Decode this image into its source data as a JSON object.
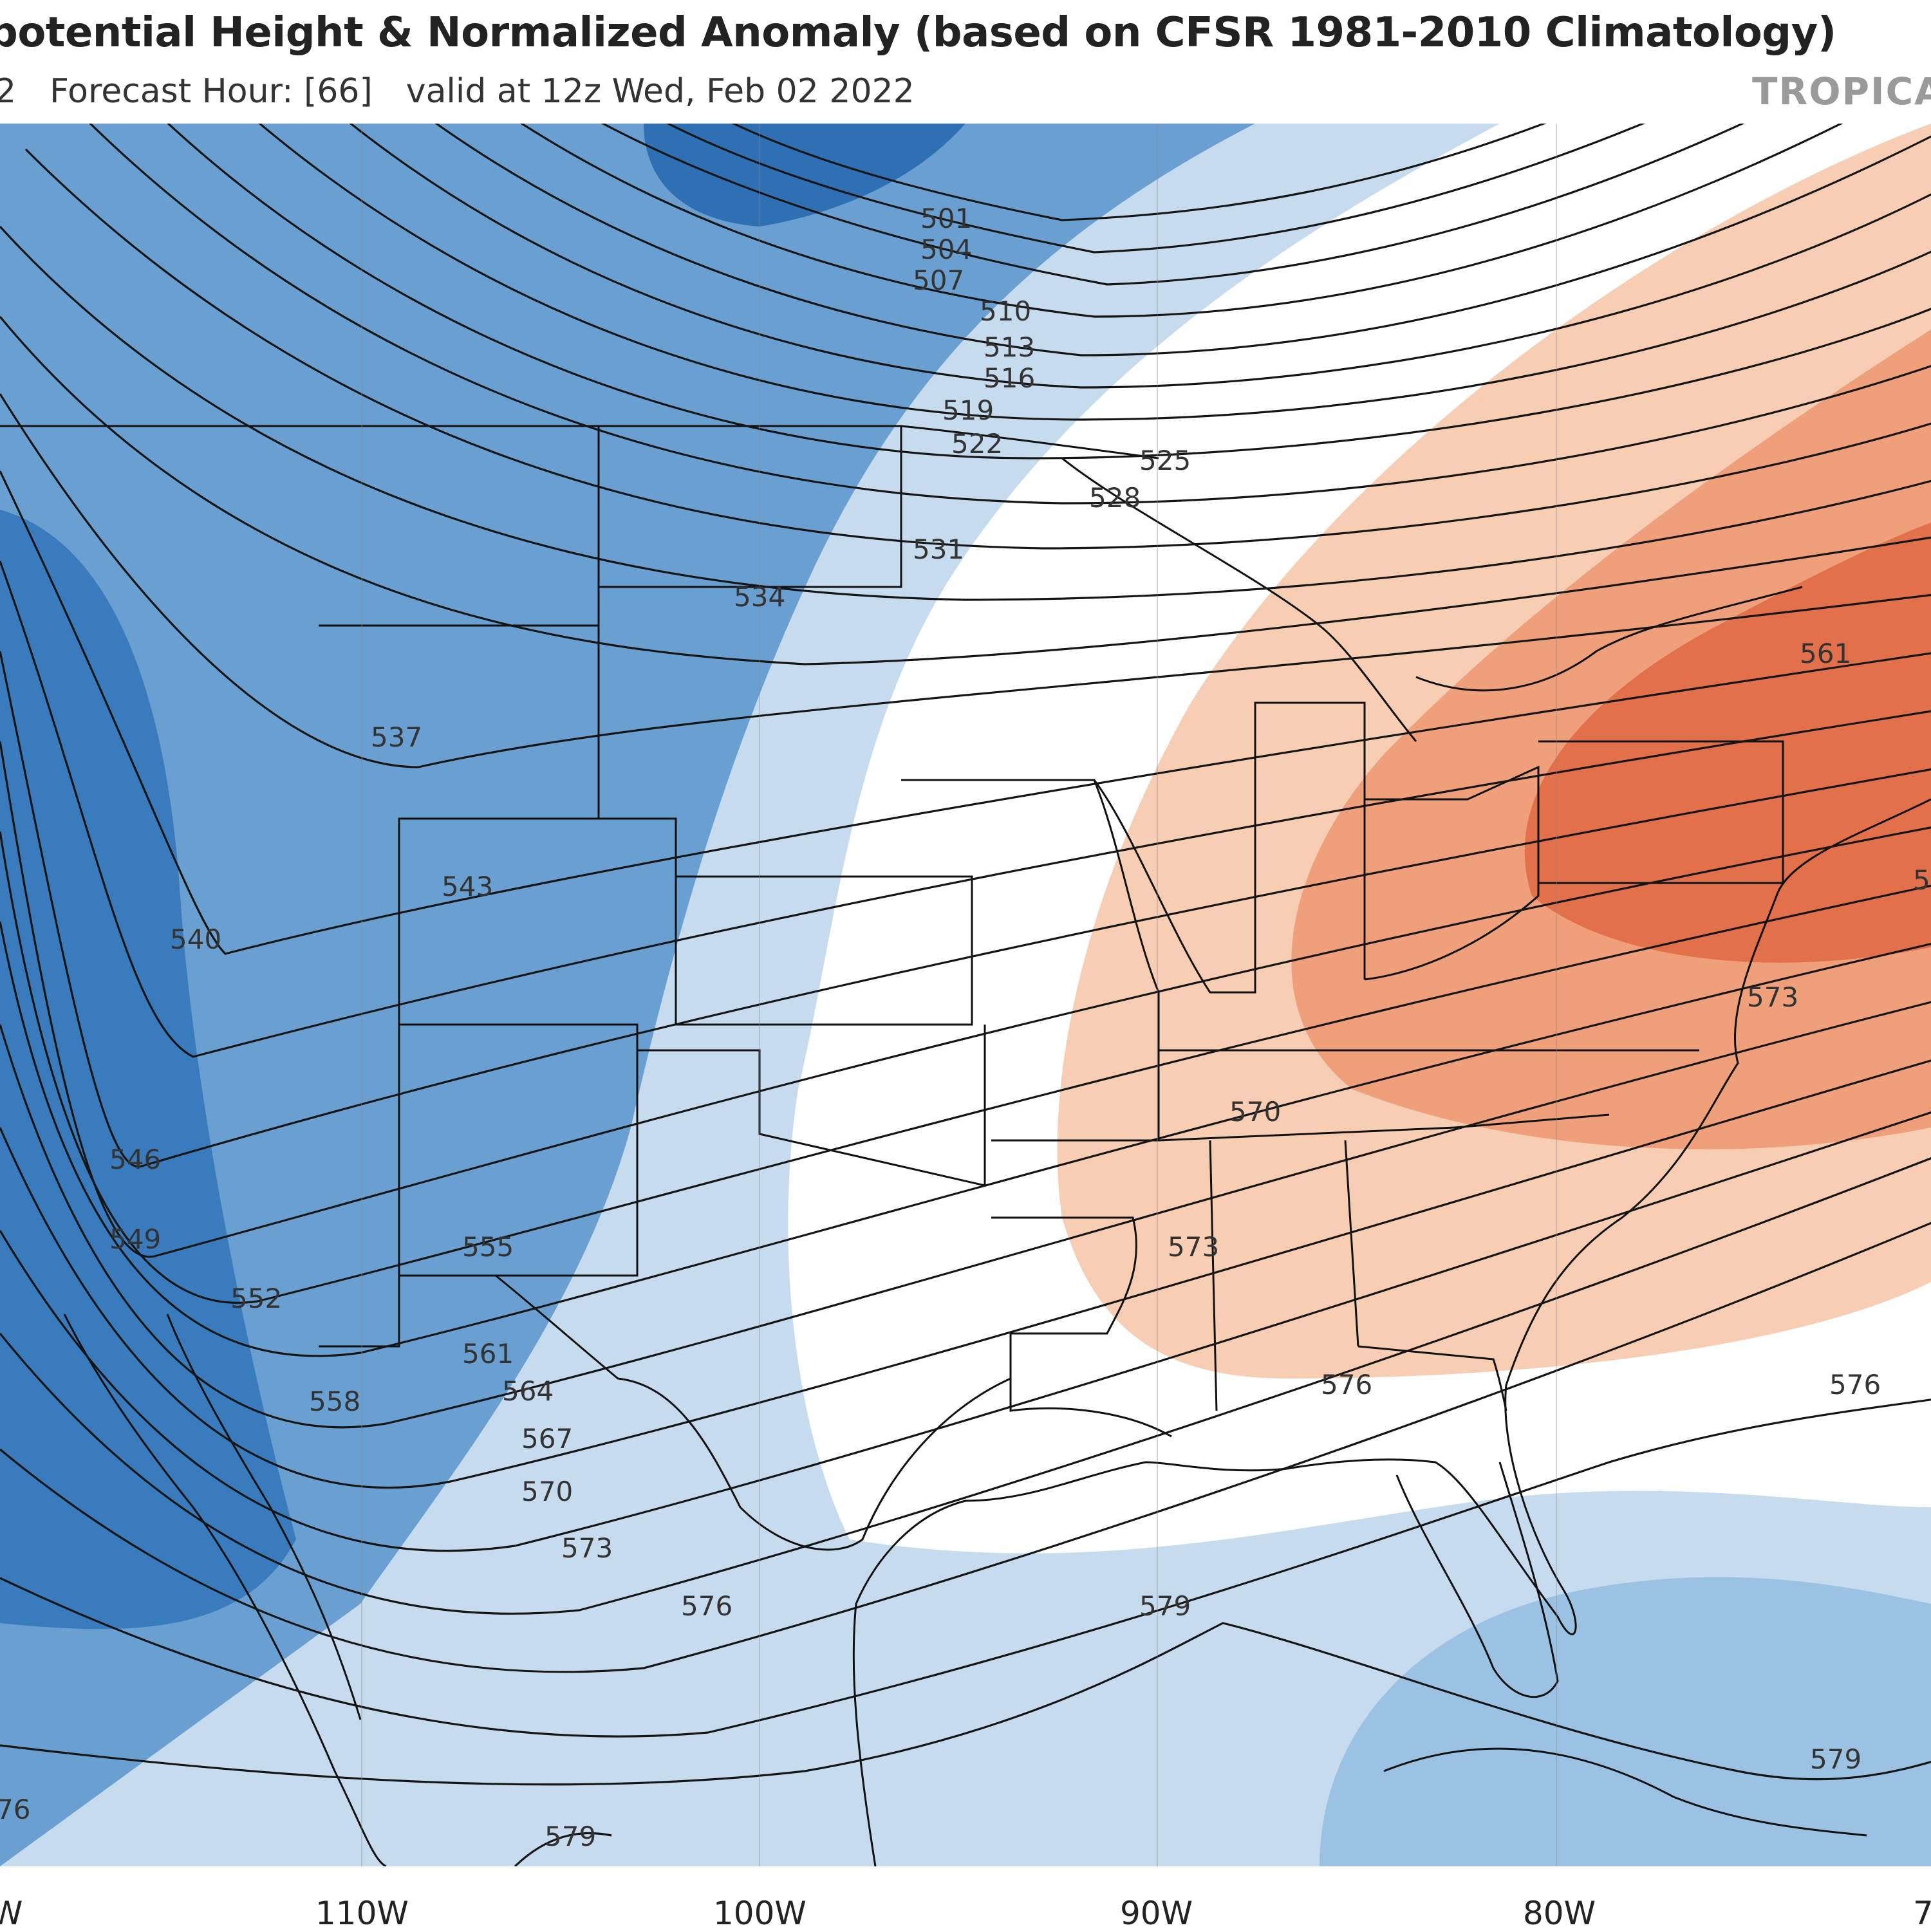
{
  "header": {
    "title": "potential Height & Normalized Anomaly (based on CFSR 1981-2010 Climatology)",
    "run_fragment": "2",
    "forecast_hour": "Forecast Hour: [66]",
    "valid_time": "valid at 12z Wed, Feb 02 2022",
    "brand": "TROPICAL"
  },
  "map": {
    "longitude_labels": [
      "W",
      "110W",
      "100W",
      "90W",
      "80W",
      "7"
    ],
    "colors": {
      "strong_negative": "#2f6fb3",
      "moderate_negative": "#6aa0d1",
      "weak_negative": "#c6dcee",
      "neutral": "#ffffff",
      "weak_positive": "#f7cdb3",
      "moderate_positive": "#ef9f7a",
      "strong_positive": "#e2704a"
    },
    "contour_labels": [
      {
        "text": "501"
      },
      {
        "text": "504"
      },
      {
        "text": "507"
      },
      {
        "text": "510"
      },
      {
        "text": "513"
      },
      {
        "text": "516"
      },
      {
        "text": "519"
      },
      {
        "text": "522"
      },
      {
        "text": "525"
      },
      {
        "text": "528"
      },
      {
        "text": "531"
      },
      {
        "text": "534"
      },
      {
        "text": "537"
      },
      {
        "text": "540"
      },
      {
        "text": "543"
      },
      {
        "text": "546"
      },
      {
        "text": "549"
      },
      {
        "text": "552"
      },
      {
        "text": "555"
      },
      {
        "text": "558"
      },
      {
        "text": "561"
      },
      {
        "text": "564"
      },
      {
        "text": "567"
      },
      {
        "text": "570"
      },
      {
        "text": "573"
      },
      {
        "text": "576"
      },
      {
        "text": "579"
      },
      {
        "text": "561"
      },
      {
        "text": "573"
      },
      {
        "text": "570"
      },
      {
        "text": "573"
      },
      {
        "text": "576"
      },
      {
        "text": "576"
      },
      {
        "text": "579"
      },
      {
        "text": "579"
      },
      {
        "text": "5"
      },
      {
        "text": "76"
      }
    ]
  }
}
